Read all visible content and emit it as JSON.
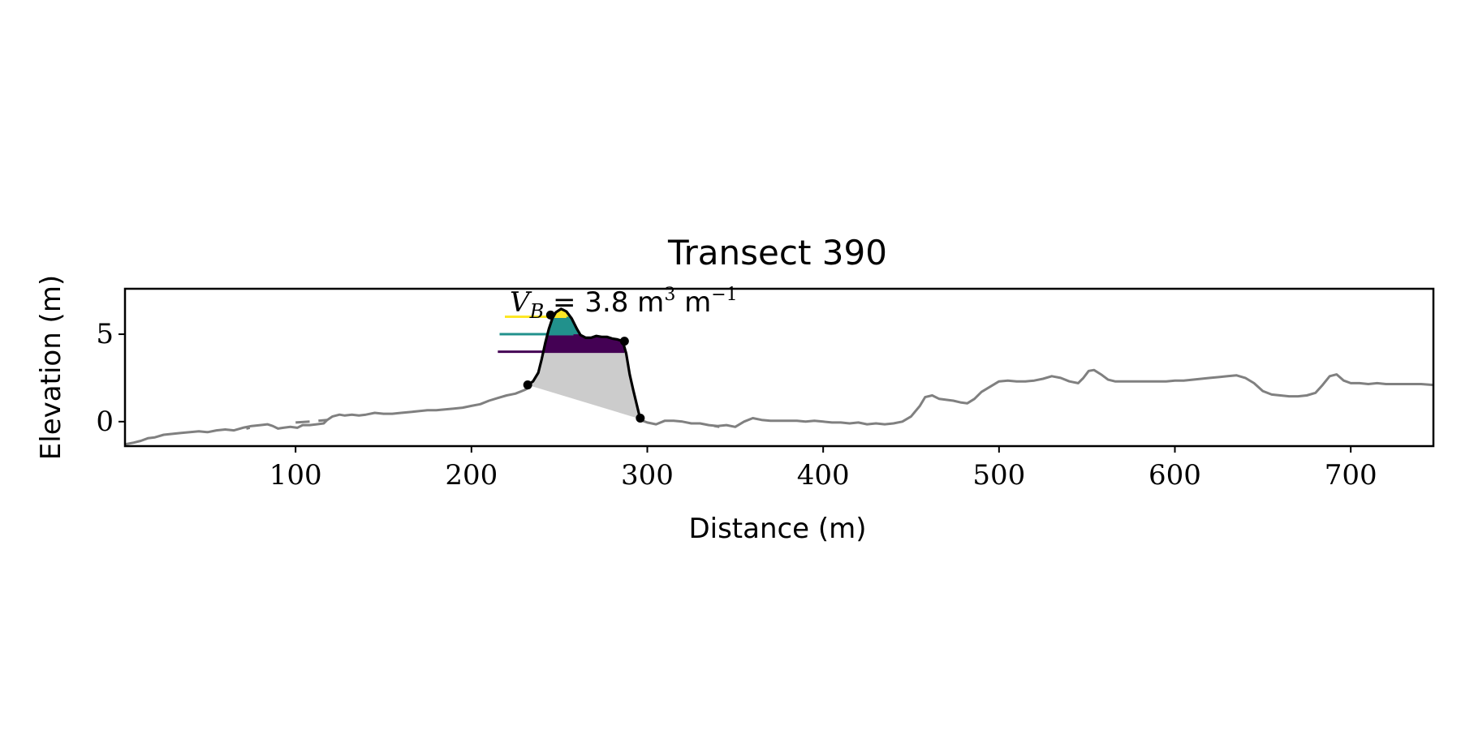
{
  "chart_data": {
    "type": "line",
    "title": "Transect 390",
    "xlabel": "Distance (m)",
    "ylabel": "Elevation (m)",
    "xlim": [
      3,
      747
    ],
    "ylim": [
      -1.4,
      7.6
    ],
    "xticks": [
      100,
      200,
      300,
      400,
      500,
      600,
      700
    ],
    "yticks": [
      0,
      5
    ],
    "grid": false,
    "annotation": {
      "prefix": "V",
      "subscript": "B",
      "middle": " = 3.8 m",
      "sup1": "3",
      "suffix": " m",
      "sup2": "−1"
    },
    "colors": {
      "profile": "#808080",
      "dune_outline": "#000000",
      "base_fill": "#cccccc",
      "layer_low": "#440154",
      "layer_mid": "#21918c",
      "layer_high": "#fde725"
    },
    "profile_segments": [
      [
        [
          3,
          -1.3
        ],
        [
          8,
          -1.2
        ],
        [
          12,
          -1.1
        ],
        [
          16,
          -0.95
        ],
        [
          20,
          -0.9
        ],
        [
          25,
          -0.75
        ],
        [
          30,
          -0.7
        ],
        [
          35,
          -0.65
        ],
        [
          40,
          -0.6
        ],
        [
          45,
          -0.55
        ],
        [
          50,
          -0.6
        ],
        [
          55,
          -0.5
        ],
        [
          60,
          -0.45
        ],
        [
          65,
          -0.5
        ],
        [
          70,
          -0.35
        ],
        [
          75,
          -0.25
        ],
        [
          80,
          -0.2
        ],
        [
          84,
          -0.15
        ],
        [
          87,
          -0.25
        ],
        [
          90,
          -0.4
        ],
        [
          93,
          -0.35
        ],
        [
          97,
          -0.3
        ],
        [
          101,
          -0.35
        ],
        [
          104,
          -0.2
        ],
        [
          108,
          -0.2
        ],
        [
          112,
          -0.15
        ],
        [
          116,
          -0.1
        ],
        [
          118,
          0.1
        ],
        [
          121,
          0.3
        ],
        [
          125,
          0.4
        ],
        [
          128,
          0.35
        ],
        [
          132,
          0.4
        ],
        [
          136,
          0.35
        ],
        [
          140,
          0.4
        ],
        [
          145,
          0.5
        ],
        [
          150,
          0.45
        ],
        [
          155,
          0.45
        ],
        [
          160,
          0.5
        ],
        [
          165,
          0.55
        ],
        [
          170,
          0.6
        ],
        [
          175,
          0.65
        ],
        [
          180,
          0.65
        ],
        [
          185,
          0.7
        ],
        [
          190,
          0.75
        ],
        [
          195,
          0.8
        ],
        [
          200,
          0.9
        ],
        [
          205,
          1.0
        ],
        [
          210,
          1.2
        ],
        [
          215,
          1.35
        ],
        [
          220,
          1.5
        ],
        [
          225,
          1.6
        ],
        [
          230,
          1.8
        ],
        [
          232,
          1.9
        ]
      ],
      [
        [
          296,
          0.1
        ],
        [
          300,
          -0.05
        ],
        [
          305,
          -0.15
        ],
        [
          310,
          0.05
        ],
        [
          315,
          0.05
        ],
        [
          320,
          0.0
        ],
        [
          325,
          -0.1
        ],
        [
          330,
          -0.1
        ],
        [
          335,
          -0.2
        ],
        [
          340,
          -0.25
        ],
        [
          345,
          -0.2
        ],
        [
          350,
          -0.3
        ],
        [
          355,
          0.0
        ],
        [
          360,
          0.2
        ],
        [
          365,
          0.1
        ],
        [
          370,
          0.05
        ],
        [
          375,
          0.05
        ],
        [
          380,
          0.05
        ],
        [
          385,
          0.05
        ],
        [
          390,
          0.0
        ],
        [
          395,
          0.05
        ],
        [
          400,
          0.0
        ],
        [
          405,
          -0.05
        ],
        [
          410,
          -0.05
        ],
        [
          415,
          -0.1
        ],
        [
          420,
          -0.05
        ],
        [
          425,
          -0.15
        ],
        [
          430,
          -0.1
        ],
        [
          435,
          -0.15
        ],
        [
          440,
          -0.1
        ],
        [
          445,
          0.0
        ],
        [
          450,
          0.3
        ],
        [
          455,
          0.9
        ],
        [
          458,
          1.4
        ],
        [
          462,
          1.5
        ],
        [
          466,
          1.3
        ],
        [
          470,
          1.25
        ],
        [
          474,
          1.2
        ],
        [
          478,
          1.1
        ],
        [
          482,
          1.05
        ],
        [
          486,
          1.3
        ],
        [
          490,
          1.7
        ],
        [
          495,
          2.0
        ],
        [
          500,
          2.3
        ],
        [
          505,
          2.35
        ],
        [
          510,
          2.3
        ],
        [
          515,
          2.3
        ],
        [
          520,
          2.35
        ],
        [
          525,
          2.45
        ],
        [
          530,
          2.6
        ],
        [
          535,
          2.5
        ],
        [
          540,
          2.3
        ],
        [
          545,
          2.2
        ],
        [
          548,
          2.5
        ],
        [
          551,
          2.9
        ],
        [
          554,
          2.95
        ],
        [
          558,
          2.7
        ],
        [
          562,
          2.4
        ],
        [
          566,
          2.3
        ],
        [
          570,
          2.3
        ],
        [
          575,
          2.3
        ],
        [
          580,
          2.3
        ],
        [
          585,
          2.3
        ],
        [
          590,
          2.3
        ],
        [
          595,
          2.3
        ],
        [
          600,
          2.35
        ],
        [
          605,
          2.35
        ],
        [
          610,
          2.4
        ],
        [
          615,
          2.45
        ],
        [
          620,
          2.5
        ],
        [
          625,
          2.55
        ],
        [
          630,
          2.6
        ],
        [
          635,
          2.65
        ],
        [
          640,
          2.5
        ],
        [
          645,
          2.2
        ],
        [
          650,
          1.75
        ],
        [
          655,
          1.55
        ],
        [
          660,
          1.5
        ],
        [
          665,
          1.45
        ],
        [
          670,
          1.45
        ],
        [
          675,
          1.5
        ],
        [
          680,
          1.65
        ],
        [
          684,
          2.1
        ],
        [
          688,
          2.6
        ],
        [
          692,
          2.7
        ],
        [
          696,
          2.35
        ],
        [
          700,
          2.2
        ],
        [
          705,
          2.2
        ],
        [
          710,
          2.15
        ],
        [
          715,
          2.2
        ],
        [
          720,
          2.15
        ],
        [
          725,
          2.15
        ],
        [
          730,
          2.15
        ],
        [
          735,
          2.15
        ],
        [
          740,
          2.15
        ],
        [
          747,
          2.1
        ]
      ]
    ],
    "profile_gaps_x": [
      [
        70,
        100
      ],
      [
        113,
        128
      ],
      [
        338,
        345
      ]
    ],
    "dune_outline": [
      [
        232,
        2.1
      ],
      [
        235,
        2.3
      ],
      [
        238,
        2.8
      ],
      [
        240,
        3.6
      ],
      [
        242,
        4.5
      ],
      [
        244,
        5.3
      ],
      [
        246,
        5.9
      ],
      [
        248,
        6.25
      ],
      [
        251,
        6.45
      ],
      [
        254,
        6.3
      ],
      [
        257,
        5.9
      ],
      [
        260,
        5.3
      ],
      [
        262,
        4.95
      ],
      [
        265,
        4.8
      ],
      [
        268,
        4.8
      ],
      [
        271,
        4.9
      ],
      [
        274,
        4.85
      ],
      [
        277,
        4.85
      ],
      [
        280,
        4.75
      ],
      [
        283,
        4.7
      ],
      [
        286,
        4.6
      ],
      [
        288,
        3.9
      ],
      [
        290,
        2.7
      ],
      [
        292,
        1.8
      ],
      [
        296,
        0.15
      ]
    ],
    "dune_points": [
      [
        232,
        2.1
      ],
      [
        245,
        6.1
      ],
      [
        287,
        4.6
      ],
      [
        296,
        0.2
      ]
    ],
    "layer_lines": [
      {
        "level": 4.0,
        "x": [
          215,
          287
        ]
      },
      {
        "level": 5.0,
        "x": [
          216,
          258
        ]
      },
      {
        "level": 6.0,
        "x": [
          219,
          254
        ]
      }
    ]
  }
}
